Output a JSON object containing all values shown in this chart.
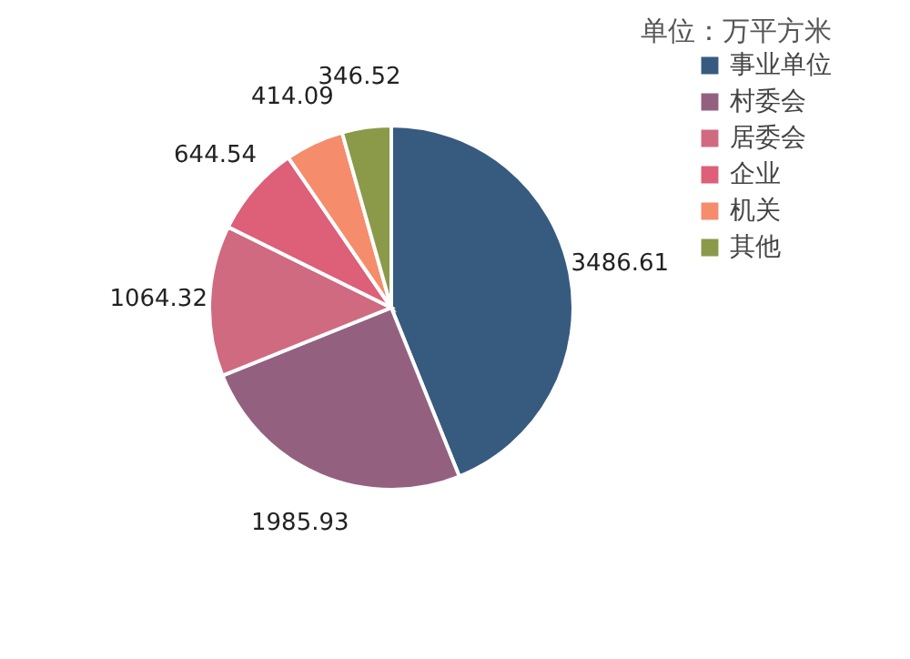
{
  "chart_data": {
    "type": "pie",
    "categories": [
      "事业单位",
      "村委会",
      "居委会",
      "企业",
      "机关",
      "其他"
    ],
    "values": [
      3486.61,
      1985.93,
      1064.32,
      644.54,
      414.09,
      346.52
    ],
    "colors": [
      "#375a7f",
      "#93617f",
      "#d06a80",
      "#dd5f78",
      "#f58c6c",
      "#8a9a48"
    ],
    "data_labels": true,
    "legend": "right",
    "annotations": [
      "单位：万平方米"
    ]
  }
}
